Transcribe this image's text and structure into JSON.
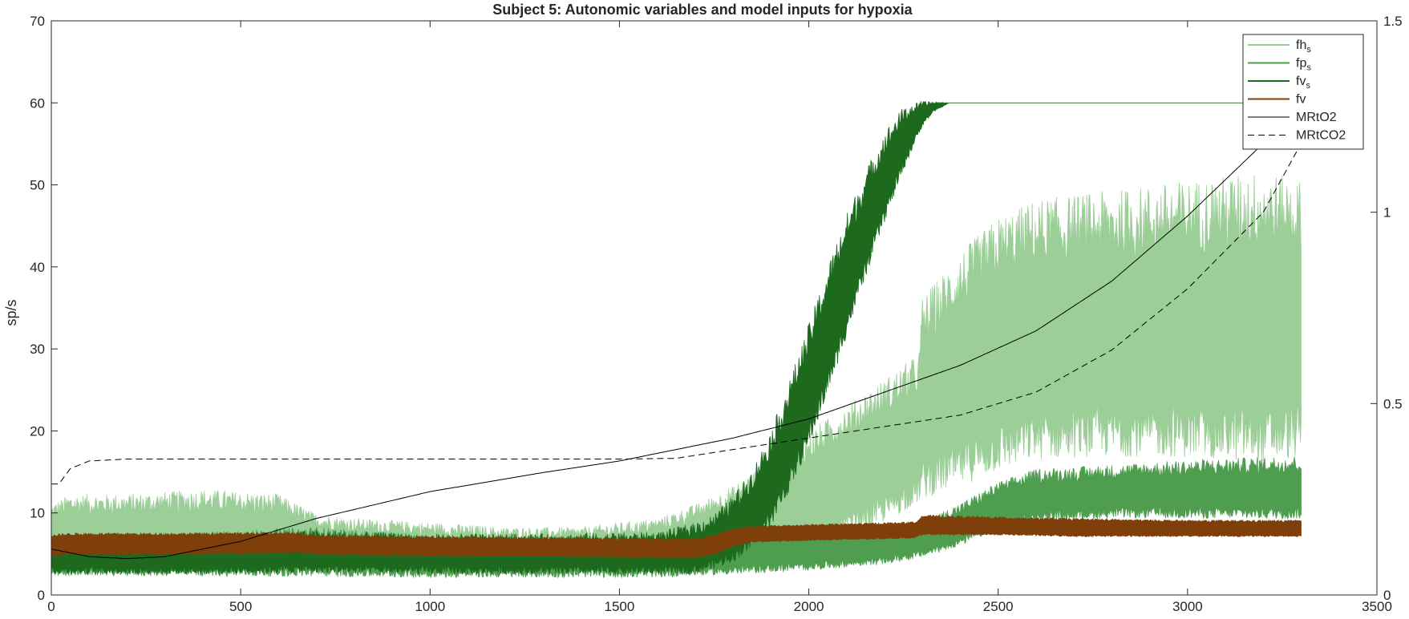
{
  "chart_data": {
    "type": "line",
    "title": "Subject 5: Autonomic variables and model inputs for hypoxia",
    "xlabel": "",
    "ylabel": "sp/s",
    "y2label": "",
    "xlim": [
      0,
      3500
    ],
    "ylim": [
      0,
      70
    ],
    "y2lim": [
      0,
      1.5
    ],
    "x_ticks": [
      "0",
      "500",
      "1000",
      "1500",
      "2000",
      "2500",
      "3000",
      "3500"
    ],
    "y_ticks": [
      "0",
      "10",
      "20",
      "30",
      "40",
      "50",
      "60",
      "70"
    ],
    "y2_ticks": [
      "0",
      "0.5",
      "1",
      "1.5"
    ],
    "grid": false,
    "legend_position": "top-right",
    "band_series": [
      {
        "name": "fh",
        "name_sub": "s",
        "color": "#9ccf98",
        "axis": "left",
        "x": [
          0,
          50,
          200,
          400,
          600,
          700,
          800,
          1000,
          1200,
          1400,
          1600,
          1700,
          1800,
          1900,
          2000,
          2100,
          2200,
          2290,
          2300,
          2400,
          2500,
          2600,
          2800,
          3000,
          3200,
          3300
        ],
        "lower": [
          3.5,
          3.5,
          3.5,
          3.5,
          3.5,
          3.8,
          3.5,
          3.2,
          3.2,
          3.2,
          3.5,
          4.0,
          4.5,
          5.5,
          6.5,
          8.5,
          10.5,
          13.0,
          14.0,
          16.0,
          18.0,
          19.5,
          20.0,
          20.0,
          19.5,
          20.0
        ],
        "upper": [
          10,
          11,
          11,
          11.5,
          11,
          9,
          8.5,
          8,
          7.5,
          7.5,
          8.5,
          10,
          12,
          15,
          18,
          21,
          24,
          27,
          33,
          38,
          42,
          44,
          45,
          46,
          47,
          46
        ]
      },
      {
        "name": "fp",
        "name_sub": "s",
        "color": "#4f9e50",
        "axis": "left",
        "x": [
          0,
          100,
          400,
          700,
          1000,
          1300,
          1600,
          1700,
          1800,
          2000,
          2200,
          2300,
          2400,
          2500,
          2600,
          2800,
          3000,
          3300
        ],
        "lower": [
          2.8,
          2.8,
          2.8,
          2.8,
          2.6,
          2.6,
          2.6,
          2.8,
          3.0,
          3.5,
          4.2,
          5.0,
          6.5,
          8.5,
          9.5,
          10.0,
          10.0,
          10.0
        ],
        "upper": [
          6.5,
          6.5,
          7.0,
          7.5,
          6.5,
          6.5,
          6.5,
          6.5,
          7.0,
          7.5,
          8.0,
          8.5,
          10.5,
          13.0,
          14.5,
          15.0,
          15.5,
          16.0
        ]
      },
      {
        "name": "fv",
        "name_sub": "s",
        "color": "#1d6a1f",
        "axis": "left",
        "x": [
          0,
          100,
          400,
          700,
          1000,
          1300,
          1600,
          1700,
          1750,
          1800,
          1850,
          1900,
          1950,
          2000,
          2050,
          2100,
          2150,
          2200,
          2250,
          2300,
          2330,
          2370,
          3300
        ],
        "lower": [
          3.0,
          3.0,
          3.0,
          3.2,
          3.0,
          3.0,
          3.0,
          3.2,
          3.8,
          4.8,
          6.5,
          9.5,
          14.0,
          19.5,
          26.0,
          33.0,
          40.0,
          46.5,
          52.5,
          57.5,
          59.0,
          60.0,
          60.0
        ],
        "upper": [
          6.5,
          6.5,
          6.8,
          7.2,
          6.8,
          6.8,
          7.0,
          8.0,
          9.0,
          11.0,
          14.0,
          18.5,
          24.5,
          31.0,
          38.0,
          44.5,
          50.0,
          55.0,
          58.5,
          59.8,
          60.0,
          60.0,
          60.0
        ]
      },
      {
        "name": "fv",
        "name_sub": "",
        "color": "#7f3f0a",
        "axis": "left",
        "x": [
          0,
          50,
          300,
          650,
          700,
          1000,
          1300,
          1600,
          1700,
          1750,
          1800,
          1850,
          2000,
          2200,
          2280,
          2300,
          2500,
          2700,
          3000,
          3300
        ],
        "lower": [
          4.8,
          5.0,
          5.0,
          5.2,
          5.0,
          4.8,
          4.8,
          4.6,
          4.6,
          5.0,
          6.0,
          6.5,
          6.7,
          6.9,
          7.0,
          7.4,
          7.4,
          7.2,
          7.2,
          7.2
        ],
        "upper": [
          7.2,
          7.4,
          7.4,
          7.5,
          7.2,
          7.0,
          6.9,
          6.8,
          6.8,
          7.2,
          8.0,
          8.3,
          8.5,
          8.7,
          8.8,
          9.6,
          9.4,
          9.2,
          9.0,
          9.0
        ]
      }
    ],
    "line_series": [
      {
        "name": "MRtO2",
        "color": "#000000",
        "dash": false,
        "axis": "right",
        "x": [
          0,
          50,
          100,
          200,
          300,
          500,
          700,
          1000,
          1300,
          1500,
          1800,
          2000,
          2200,
          2400,
          2600,
          2800,
          3000,
          3200,
          3300
        ],
        "y": [
          0.12,
          0.11,
          0.1,
          0.095,
          0.1,
          0.14,
          0.2,
          0.27,
          0.32,
          0.35,
          0.41,
          0.46,
          0.53,
          0.6,
          0.69,
          0.82,
          0.99,
          1.18,
          1.28
        ]
      },
      {
        "name": "MRtCO2",
        "color": "#000000",
        "dash": true,
        "axis": "right",
        "x": [
          0,
          20,
          50,
          100,
          200,
          500,
          1000,
          1500,
          1650,
          1800,
          2000,
          2200,
          2400,
          2600,
          2800,
          3000,
          3200,
          3300
        ],
        "y": [
          0.29,
          0.29,
          0.33,
          0.35,
          0.355,
          0.355,
          0.355,
          0.355,
          0.357,
          0.38,
          0.41,
          0.44,
          0.47,
          0.53,
          0.64,
          0.8,
          1.0,
          1.18
        ]
      }
    ]
  }
}
